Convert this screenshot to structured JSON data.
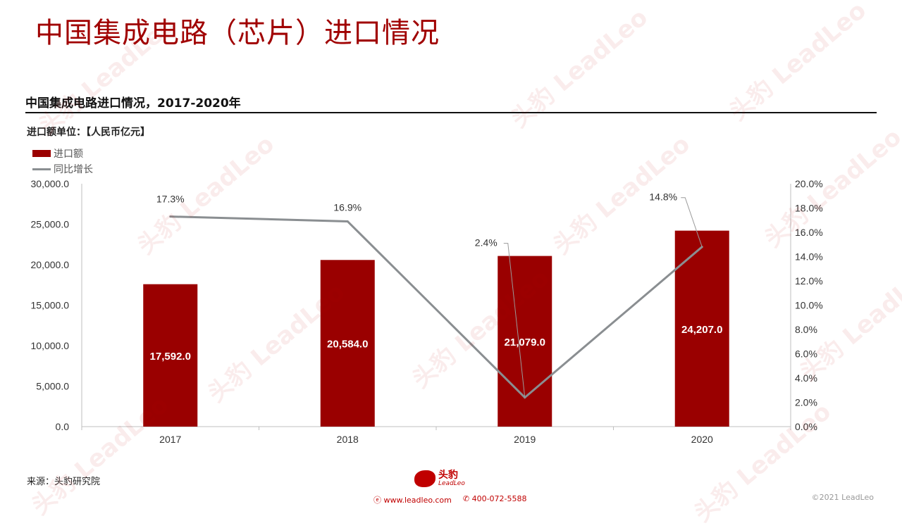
{
  "header": {
    "title": "中国集成电路（芯片）进口情况",
    "subtitle": "中国集成电路进口情况，2017-2020年",
    "unit": "进口额单位：【人民币亿元】"
  },
  "legend": {
    "bar_label": "进口额",
    "line_label": "同比增长"
  },
  "footer": {
    "source": "来源：头豹研究院",
    "logo_cn": "头豹",
    "logo_en": "LeadLeo",
    "website": "www.leadleo.com",
    "phone": "400-072-5588",
    "copyright": "©2021 LeadLeo"
  },
  "watermark": "头豹 LeadLeo",
  "colors": {
    "title": "#a00000",
    "bar": "#9a0000",
    "line": "#8a8e91"
  },
  "chart_data": {
    "type": "bar",
    "categories": [
      "2017",
      "2018",
      "2019",
      "2020"
    ],
    "series": [
      {
        "name": "进口额",
        "type": "bar",
        "axis": "left",
        "values": [
          17592.0,
          20584.0,
          21079.0,
          24207.0
        ],
        "labels": [
          "17,592.0",
          "20,584.0",
          "21,079.0",
          "24,207.0"
        ]
      },
      {
        "name": "同比增长",
        "type": "line",
        "axis": "right",
        "values": [
          17.3,
          16.9,
          2.4,
          14.8
        ],
        "labels": [
          "17.3%",
          "16.9%",
          "2.4%",
          "14.8%"
        ]
      }
    ],
    "y_left": {
      "min": 0,
      "max": 30000,
      "ticks": [
        "0.0",
        "5,000.0",
        "10,000.0",
        "15,000.0",
        "20,000.0",
        "25,000.0",
        "30,000.0"
      ]
    },
    "y_right": {
      "min": 0,
      "max": 20,
      "ticks": [
        "0.0%",
        "2.0%",
        "4.0%",
        "6.0%",
        "8.0%",
        "10.0%",
        "12.0%",
        "14.0%",
        "16.0%",
        "18.0%",
        "20.0%"
      ]
    },
    "grid": false,
    "legend_position": "top-left"
  }
}
